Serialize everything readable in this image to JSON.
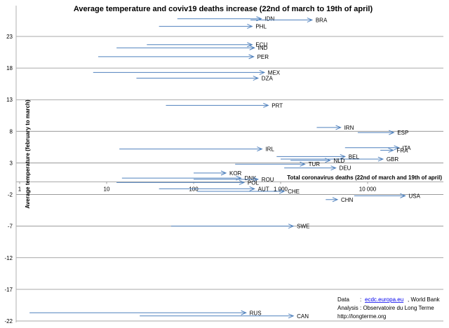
{
  "chart_data": {
    "type": "scatter",
    "title": "Average temperature  and coviv19 deaths increase (22nd of march to 19th of april)",
    "xlabel": "Total coronavirus deaths (22nd of march and 19th of april)",
    "ylabel": "Average temperature (february to march)",
    "x_scale": "log",
    "xlim": [
      1,
      30000
    ],
    "ylim": [
      -22,
      27
    ],
    "x_ticks": [
      {
        "value": 1,
        "label": "1"
      },
      {
        "value": 10,
        "label": "10"
      },
      {
        "value": 100,
        "label": "100"
      },
      {
        "value": 1000,
        "label": "1 000"
      },
      {
        "value": 10000,
        "label": "10 000"
      }
    ],
    "y_ticks": [
      {
        "value": 23,
        "label": "23"
      },
      {
        "value": 18,
        "label": "18"
      },
      {
        "value": 13,
        "label": "13"
      },
      {
        "value": 8,
        "label": "8"
      },
      {
        "value": 3,
        "label": "3"
      },
      {
        "value": -2,
        "label": "-2"
      },
      {
        "value": -7,
        "label": "-7"
      },
      {
        "value": -12,
        "label": "-12"
      },
      {
        "value": -17,
        "label": "-17"
      },
      {
        "value": -22,
        "label": "-22"
      }
    ],
    "grid": true,
    "arrows": [
      {
        "name": "IDN",
        "x0": 65,
        "x1": 600,
        "y": 25.8
      },
      {
        "name": "BRA",
        "x0": 450,
        "x1": 2300,
        "y": 25.6
      },
      {
        "name": "PHL",
        "x0": 40,
        "x1": 470,
        "y": 24.6
      },
      {
        "name": "ECU",
        "x0": 29,
        "x1": 470,
        "y": 21.7
      },
      {
        "name": "IND",
        "x0": 13,
        "x1": 500,
        "y": 21.2
      },
      {
        "name": "PER",
        "x0": 8,
        "x1": 490,
        "y": 19.8
      },
      {
        "name": "MEX",
        "x0": 7,
        "x1": 650,
        "y": 17.3
      },
      {
        "name": "DZA",
        "x0": 22,
        "x1": 550,
        "y": 16.4
      },
      {
        "name": "PRT",
        "x0": 48,
        "x1": 720,
        "y": 12.1
      },
      {
        "name": "IRN",
        "x0": 2600,
        "x1": 4900,
        "y": 8.6
      },
      {
        "name": "ESP",
        "x0": 7700,
        "x1": 20000,
        "y": 7.8
      },
      {
        "name": "ITA",
        "x0": 5500,
        "x1": 22900,
        "y": 5.4
      },
      {
        "name": "FRA",
        "x0": 14000,
        "x1": 19700,
        "y": 5.0
      },
      {
        "name": "IRL",
        "x0": 14,
        "x1": 610,
        "y": 5.2
      },
      {
        "name": "BEL",
        "x0": 900,
        "x1": 5500,
        "y": 4.0
      },
      {
        "name": "GBR",
        "x0": 1000,
        "x1": 15000,
        "y": 3.6
      },
      {
        "name": "NLD",
        "x0": 1300,
        "x1": 3700,
        "y": 3.4
      },
      {
        "name": "TUR",
        "x0": 300,
        "x1": 1900,
        "y": 2.8
      },
      {
        "name": "DEU",
        "x0": 1100,
        "x1": 4300,
        "y": 2.2
      },
      {
        "name": "KOR",
        "x0": 100,
        "x1": 235,
        "y": 1.4
      },
      {
        "name": "DNK",
        "x0": 15,
        "x1": 350,
        "y": 0.6
      },
      {
        "name": "ROU",
        "x0": 100,
        "x1": 550,
        "y": 0.4
      },
      {
        "name": "POL",
        "x0": 13,
        "x1": 380,
        "y": -0.1
      },
      {
        "name": "AUT",
        "x0": 40,
        "x1": 500,
        "y": -1.1
      },
      {
        "name": "CHE",
        "x0": 110,
        "x1": 1100,
        "y": -1.5
      },
      {
        "name": "CHN",
        "x0": 3300,
        "x1": 4500,
        "y": -2.8
      },
      {
        "name": "USA",
        "x0": 7000,
        "x1": 27000,
        "y": -2.2
      },
      {
        "name": "SWE",
        "x0": 55,
        "x1": 1400,
        "y": -7.0
      },
      {
        "name": "RUS",
        "x0": 1.3,
        "x1": 400,
        "y": -20.7
      },
      {
        "name": "CAN",
        "x0": 24,
        "x1": 1400,
        "y": -21.2
      }
    ]
  },
  "credits": {
    "data_label": "Data",
    "data_sep": ": ",
    "data_link": "ecdc.europa.eu",
    "data_rest": ", World Bank",
    "analysis": "Analysis : Observatoire du Long Terme",
    "url": "http://longterme.org"
  }
}
